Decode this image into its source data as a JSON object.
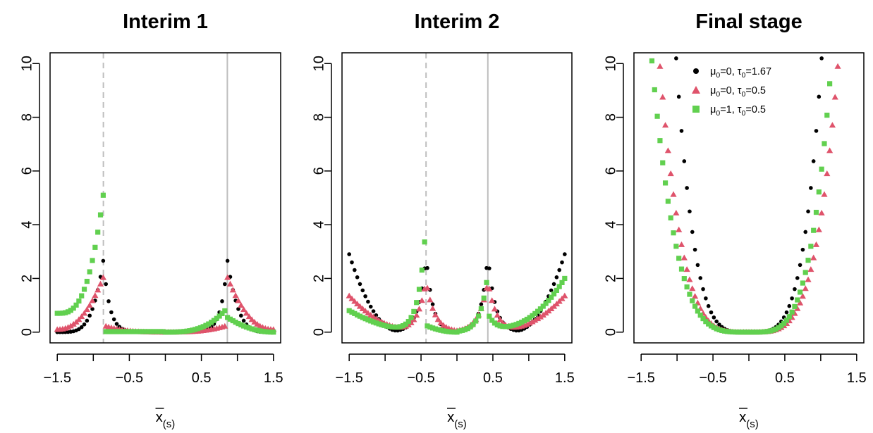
{
  "colors": {
    "mu0_tau167": "#000000",
    "mu0_tau05": "#DF536B",
    "mu1_tau05": "#61D04F",
    "vline": "#BEBEBE"
  },
  "chart_data": [
    {
      "type": "scatter",
      "title": "Interim 1",
      "xlabel": "x̄(s)",
      "ylabel": "",
      "xlim": [
        -1.6,
        1.6
      ],
      "ylim": [
        -0.4,
        10.4
      ],
      "xticks": [
        "-1.5",
        "-0.5",
        "0.5",
        "1.5"
      ],
      "yticks": [
        "0",
        "2",
        "4",
        "6",
        "8",
        "10"
      ],
      "vlines": [
        {
          "x": -0.86,
          "style": "dashed"
        },
        {
          "x": 0.86,
          "style": "solid"
        }
      ],
      "series": [
        {
          "key": "mu0_tau167",
          "marker": "circle",
          "domains": [
            [
              -1.5,
              -0.86
            ],
            [
              -0.86,
              0.86
            ],
            [
              0.86,
              1.5
            ]
          ],
          "profile": "i1_black"
        },
        {
          "key": "mu0_tau05",
          "marker": "triangle",
          "domains": [
            [
              -1.5,
              -0.86
            ],
            [
              -0.86,
              0.86
            ],
            [
              0.86,
              1.5
            ]
          ],
          "profile": "i1_red"
        },
        {
          "key": "mu1_tau05",
          "marker": "square",
          "domains": [
            [
              -1.5,
              -0.86
            ],
            [
              -0.86,
              0.86
            ],
            [
              0.86,
              1.5
            ]
          ],
          "profile": "i1_green"
        }
      ]
    },
    {
      "type": "scatter",
      "title": "Interim 2",
      "xlabel": "x̄(s)",
      "ylabel": "",
      "xlim": [
        -1.6,
        1.6
      ],
      "ylim": [
        -0.4,
        10.4
      ],
      "xticks": [
        "-1.5",
        "-0.5",
        "0.5",
        "1.5"
      ],
      "yticks": [
        "0",
        "2",
        "4",
        "6",
        "8",
        "10"
      ],
      "vlines": [
        {
          "x": -0.43,
          "style": "dashed"
        },
        {
          "x": 0.43,
          "style": "solid"
        }
      ],
      "series": [
        {
          "key": "mu0_tau167",
          "marker": "circle",
          "profile": "i2_black"
        },
        {
          "key": "mu0_tau05",
          "marker": "triangle",
          "profile": "i2_red"
        },
        {
          "key": "mu1_tau05",
          "marker": "square",
          "profile": "i2_green"
        }
      ]
    },
    {
      "type": "scatter",
      "title": "Final stage",
      "xlabel": "x̄(s)",
      "ylabel": "",
      "xlim": [
        -1.6,
        1.6
      ],
      "ylim": [
        -0.4,
        10.4
      ],
      "xticks": [
        "-1.5",
        "-0.5",
        "0.5",
        "1.5"
      ],
      "yticks": [
        "0",
        "2",
        "4",
        "6",
        "8",
        "10"
      ],
      "vlines": [],
      "legend": {
        "placement": "top-right",
        "entries": [
          {
            "key": "mu0_tau167",
            "marker": "circle",
            "mu_label": "μ",
            "mu_sub": "0",
            "mu_val": "=0,",
            "tau_label": "τ",
            "tau_sub": "0",
            "tau_val": "=1.67"
          },
          {
            "key": "mu0_tau05",
            "marker": "triangle",
            "mu_label": "μ",
            "mu_sub": "0",
            "mu_val": "=0,",
            "tau_label": "τ",
            "tau_sub": "0",
            "tau_val": "=0.5"
          },
          {
            "key": "mu1_tau05",
            "marker": "square",
            "mu_label": "μ",
            "mu_sub": "0",
            "mu_val": "=1,",
            "tau_label": "τ",
            "tau_sub": "0",
            "tau_val": "=0.5"
          }
        ]
      },
      "series": [
        {
          "key": "mu0_tau167",
          "marker": "circle",
          "profile": "f_black"
        },
        {
          "key": "mu0_tau05",
          "marker": "triangle",
          "profile": "f_red"
        },
        {
          "key": "mu1_tau05",
          "marker": "square",
          "profile": "f_green"
        }
      ]
    }
  ]
}
